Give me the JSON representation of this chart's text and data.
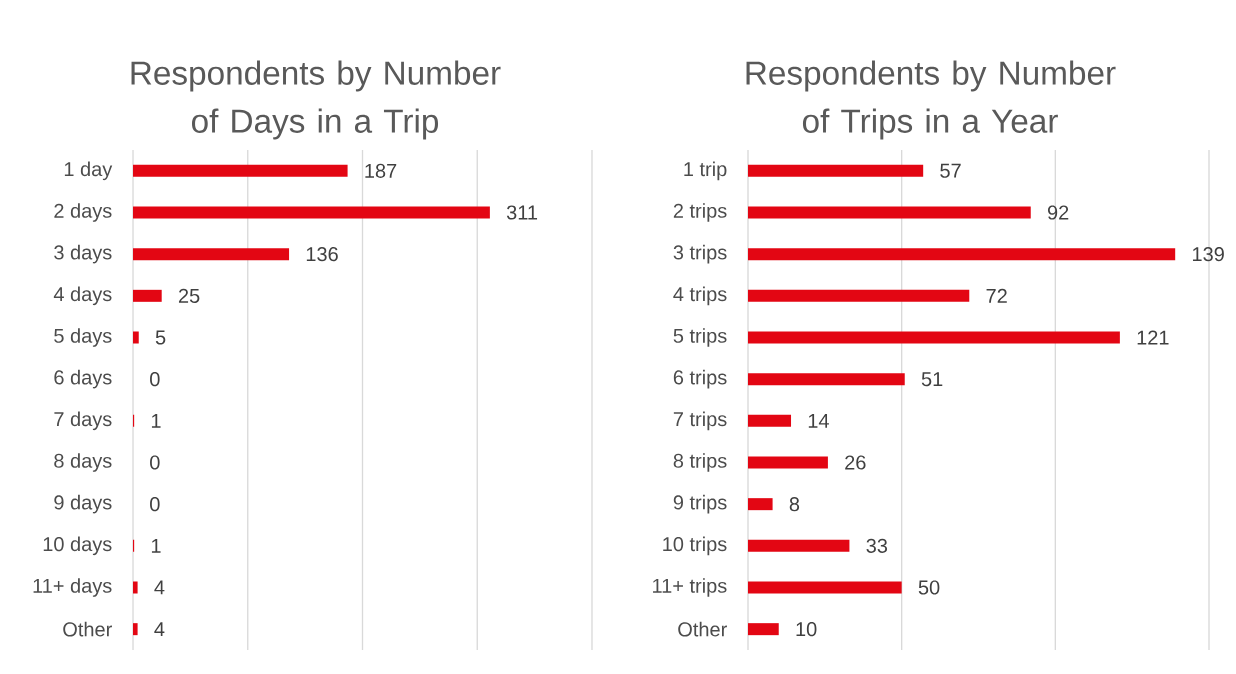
{
  "chart_data": [
    {
      "type": "bar",
      "orientation": "horizontal",
      "title": "Respondents by Number of Days in a Trip",
      "categories": [
        "1 day",
        "2 days",
        "3 days",
        "4 days",
        "5 days",
        "6 days",
        "7 days",
        "8 days",
        "9 days",
        "10 days",
        "11+ days",
        "Other"
      ],
      "values": [
        187,
        311,
        136,
        25,
        5,
        0,
        1,
        0,
        0,
        1,
        4,
        4
      ],
      "color": "#e30613",
      "xlim": [
        0,
        400
      ],
      "xticks": [
        {
          "value": 0,
          "label": null
        },
        {
          "value": 100,
          "label": null
        },
        {
          "value": 200,
          "label": null
        },
        {
          "value": 300,
          "label": null
        },
        {
          "value": 400,
          "label": null
        }
      ],
      "grid": "x",
      "tick_labels": "y",
      "data_labels": true
    },
    {
      "type": "bar",
      "orientation": "horizontal",
      "title": "Respondents by Number of Trips in a Year",
      "categories": [
        "1 trip",
        "2 trips",
        "3 trips",
        "4 trips",
        "5 trips",
        "6 trips",
        "7 trips",
        "8 trips",
        "9 trips",
        "10 trips",
        "11+ trips",
        "Other"
      ],
      "values": [
        57,
        92,
        139,
        72,
        121,
        51,
        14,
        26,
        8,
        33,
        50,
        10
      ],
      "color": "#e30613",
      "xlim": [
        0,
        150
      ],
      "xticks": [
        {
          "value": 0,
          "label": null
        },
        {
          "value": 50,
          "label": null
        },
        {
          "value": 100,
          "label": null
        },
        {
          "value": 150,
          "label": null
        }
      ],
      "grid": "x",
      "tick_labels": "y",
      "data_labels": true
    }
  ]
}
